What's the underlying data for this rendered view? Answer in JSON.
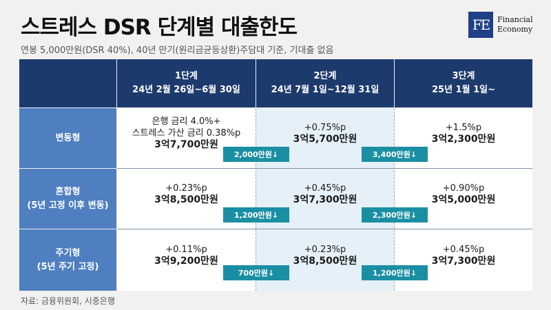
{
  "title": "스트레스 DSR 단계별 대출한도",
  "subtitle": "연봉 5,000만원(DSR 40%), 40년 만기(원리금균등상환)주담대 기준, 기대출 없음",
  "logo": {
    "mark": "FE",
    "line1": "Financial",
    "line2": "Economy"
  },
  "columns": [
    {
      "stage": "1단계",
      "period": "24년 2월 26일~6월 30일"
    },
    {
      "stage": "2단계",
      "period": "24년 7월 1일~12월 31일"
    },
    {
      "stage": "3단계",
      "period": "25년 1월 1일~"
    }
  ],
  "rows": [
    {
      "name": "변동형",
      "sub": "",
      "cells": [
        {
          "line1": "은행 금리 4.0%+",
          "line2": "스트레스 가산 금리 0.38%p",
          "amount": "3억7,700만원"
        },
        {
          "line1": "+0.75%p",
          "line2": "",
          "amount": "3억5,700만원"
        },
        {
          "line1": "+1.5%p",
          "line2": "",
          "amount": "3억2,300만원"
        }
      ],
      "badges": [
        "2,000만원↓",
        "3,400만원↓"
      ]
    },
    {
      "name": "혼합형",
      "sub": "(5년 고정 이후 변동)",
      "cells": [
        {
          "line1": "+0.23%p",
          "line2": "",
          "amount": "3억8,500만원"
        },
        {
          "line1": "+0.45%p",
          "line2": "",
          "amount": "3억7,300만원"
        },
        {
          "line1": "+0.90%p",
          "line2": "",
          "amount": "3억5,000만원"
        }
      ],
      "badges": [
        "1,200만원↓",
        "2,300만원↓"
      ]
    },
    {
      "name": "주기형",
      "sub": "(5년 주기 고정)",
      "cells": [
        {
          "line1": "+0.11%p",
          "line2": "",
          "amount": "3억9,200만원"
        },
        {
          "line1": "+0.23%p",
          "line2": "",
          "amount": "3억8,500만원"
        },
        {
          "line1": "+0.45%p",
          "line2": "",
          "amount": "3억7,300만원"
        }
      ],
      "badges": [
        "700만원↓",
        "1,200만원↓"
      ]
    }
  ],
  "source": "자료: 금융위원회, 시중은행",
  "colors": {
    "header": "#1d3a6d",
    "row_header": "#4f7fc0",
    "badge": "#1a8fa3",
    "mid_column": "#e5f0f8"
  }
}
